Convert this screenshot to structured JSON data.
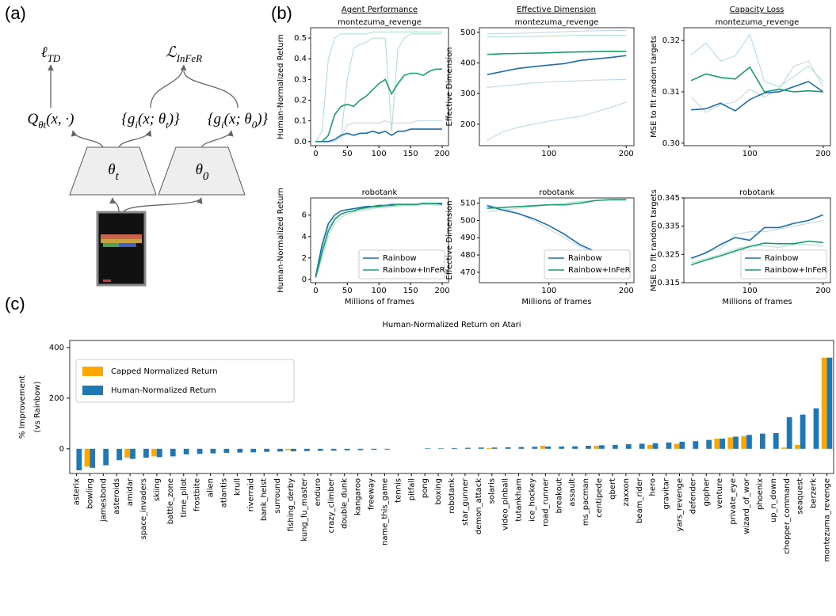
{
  "panel_labels": [
    "(a)",
    "(b)",
    "(c)"
  ],
  "diagram": {
    "loss_td": [
      {
        "text": "ℓ",
        "sub": false
      },
      {
        "text": "TD",
        "sub": true
      }
    ],
    "loss_infer": [
      {
        "text": "ℒ",
        "sub": false
      },
      {
        "text": "InFeR",
        "sub": true
      }
    ],
    "q": [
      {
        "text": "Q",
        "sub": false
      },
      {
        "text": "θt",
        "sub": true
      },
      {
        "text": "(x, ·)",
        "sub": false
      }
    ],
    "g_t": [
      {
        "text": "{g",
        "sub": false
      },
      {
        "text": "i",
        "sub": true
      },
      {
        "text": "(x; θ",
        "sub": false
      },
      {
        "text": "t",
        "sub": true
      },
      {
        "text": ")}",
        "sub": false
      }
    ],
    "g_0": [
      {
        "text": "{g",
        "sub": false
      },
      {
        "text": "i",
        "sub": true
      },
      {
        "text": "(x; θ",
        "sub": false
      },
      {
        "text": "0",
        "sub": true
      },
      {
        "text": ")}",
        "sub": false
      }
    ],
    "theta_t": [
      {
        "text": "θ",
        "sub": false
      },
      {
        "text": "t",
        "sub": true
      }
    ],
    "theta_0": [
      {
        "text": "θ",
        "sub": false
      },
      {
        "text": "0",
        "sub": true
      }
    ]
  },
  "column_titles": [
    "Agent Performance",
    "Effective Dimension",
    "Capacity Loss"
  ],
  "chart_data": [
    {
      "type": "line",
      "title": "montezuma_revenge",
      "ylabel": "Human-Normalized Return",
      "x": [
        0,
        10,
        20,
        30,
        40,
        50,
        60,
        70,
        80,
        90,
        100,
        110,
        120,
        130,
        140,
        150,
        160,
        170,
        180,
        190,
        200
      ],
      "xlim": [
        -8,
        210
      ],
      "xticks": [
        0,
        50,
        100,
        150,
        200
      ],
      "ylim": [
        -0.02,
        0.55
      ],
      "yticks": [
        {
          "value": 0,
          "label": "0.0"
        },
        0.1,
        0.2,
        0.3,
        0.4,
        0.5
      ],
      "series": [
        {
          "color": "#a8e0c8",
          "values": [
            0,
            0.05,
            0.4,
            0.5,
            0.52,
            0.52,
            0.52,
            0.52,
            0.52,
            0.53,
            0.53,
            0.53,
            0.53,
            0.53,
            0.53,
            0.53,
            0.53,
            0.53,
            0.53,
            0.53,
            0.53
          ]
        },
        {
          "color": "#a8e0c8",
          "values": [
            0,
            0,
            0,
            0,
            0.02,
            0.3,
            0.45,
            0.47,
            0.48,
            0.5,
            0.5,
            0.5,
            0.05,
            0.45,
            0.5,
            0.52,
            0.52,
            0.52,
            0.52,
            0.52,
            0.52
          ]
        },
        {
          "color": "#b9d4ea",
          "values": [
            0,
            0,
            0,
            0,
            0.02,
            0.08,
            0.09,
            0.09,
            0.09,
            0.09,
            0.09,
            0.1,
            0.09,
            0.09,
            0.09,
            0.09,
            0.1,
            0.1,
            0.1,
            0.1,
            0.1
          ]
        },
        {
          "name": "Rainbow",
          "color": "#1a6db0",
          "values": [
            0,
            0,
            0,
            0.01,
            0.03,
            0.04,
            0.03,
            0.04,
            0.04,
            0.05,
            0.04,
            0.05,
            0.03,
            0.05,
            0.05,
            0.06,
            0.06,
            0.06,
            0.06,
            0.06,
            0.06
          ]
        },
        {
          "name": "Rainbow+InFeR",
          "color": "#17a06a",
          "values": [
            0,
            0,
            0.03,
            0.13,
            0.17,
            0.18,
            0.17,
            0.2,
            0.22,
            0.25,
            0.28,
            0.3,
            0.23,
            0.28,
            0.32,
            0.33,
            0.33,
            0.32,
            0.34,
            0.35,
            0.35
          ]
        }
      ]
    },
    {
      "type": "line",
      "title": "montezuma_revenge",
      "ylabel": "Effective Dimension",
      "x": [
        20,
        40,
        60,
        80,
        100,
        120,
        140,
        160,
        180,
        200
      ],
      "xlim": [
        10,
        210
      ],
      "xticks": [
        100,
        200
      ],
      "ylim": [
        130,
        515
      ],
      "yticks": [
        200,
        300,
        400,
        500
      ],
      "series": [
        {
          "color": "#b9d4ea",
          "values": [
            148,
            175,
            190,
            200,
            210,
            218,
            225,
            240,
            255,
            272
          ]
        },
        {
          "color": "#b9d4ea",
          "values": [
            320,
            325,
            330,
            335,
            338,
            340,
            342,
            344,
            345,
            346
          ]
        },
        {
          "color": "#a8e0c8",
          "values": [
            485,
            485,
            486,
            487,
            488,
            489,
            490,
            490,
            490,
            490
          ]
        },
        {
          "color": "#b9d4ea",
          "values": [
            495,
            496,
            497,
            498,
            500,
            502,
            504,
            505,
            506,
            506
          ]
        },
        {
          "name": "Rainbow",
          "color": "#1a6db0",
          "values": [
            362,
            372,
            382,
            388,
            393,
            398,
            408,
            413,
            418,
            424
          ]
        },
        {
          "name": "Rainbow+InFeR",
          "color": "#17a06a",
          "values": [
            428,
            430,
            431,
            432,
            433,
            435,
            436,
            437,
            438,
            438
          ]
        }
      ]
    },
    {
      "type": "line",
      "title": "montezuma_revenge",
      "ylabel": "MSE to fit random targets",
      "x": [
        20,
        40,
        60,
        80,
        100,
        120,
        140,
        160,
        180,
        200
      ],
      "xlim": [
        10,
        210
      ],
      "xticks": [
        100,
        200
      ],
      "ylim": [
        0.2995,
        0.3225
      ],
      "yticks": [
        {
          "value": 0.3,
          "label": "0.30"
        },
        0.31,
        0.32
      ],
      "series": [
        {
          "color": "#a8e0c8",
          "values": [
            0.3172,
            0.3195,
            0.316,
            0.317,
            0.3212,
            0.312,
            0.311,
            0.313,
            0.315,
            0.312
          ]
        },
        {
          "color": "#b9d4ea",
          "values": [
            0.309,
            0.306,
            0.3075,
            0.308,
            0.3105,
            0.309,
            0.3105,
            0.315,
            0.316,
            0.311
          ]
        },
        {
          "name": "Rainbow",
          "color": "#1a6db0",
          "values": [
            0.3065,
            0.3067,
            0.3078,
            0.3063,
            0.3085,
            0.3098,
            0.31,
            0.311,
            0.312,
            0.31
          ]
        },
        {
          "name": "Rainbow+InFeR",
          "color": "#17a06a",
          "values": [
            0.3122,
            0.3135,
            0.3128,
            0.3125,
            0.3148,
            0.31,
            0.3105,
            0.31,
            0.3102,
            0.31
          ]
        }
      ]
    },
    {
      "type": "line",
      "title": "robotank",
      "ylabel": "Human-Normalized Return",
      "xlabel": "Millions of frames",
      "x": [
        0,
        10,
        20,
        30,
        40,
        50,
        60,
        70,
        80,
        90,
        100,
        110,
        120,
        130,
        140,
        150,
        160,
        170,
        180,
        190,
        200
      ],
      "xlim": [
        -8,
        210
      ],
      "xticks": [
        0,
        50,
        100,
        150,
        200
      ],
      "ylim": [
        -0.3,
        7.6
      ],
      "yticks": [
        0,
        2,
        4,
        6
      ],
      "legend": "lower right",
      "series": [
        {
          "color": "#b9d4ea",
          "values": [
            0.2,
            2.8,
            4.8,
            5.7,
            6.1,
            6.3,
            6.4,
            6.5,
            6.6,
            6.7,
            6.7,
            6.8,
            6.8,
            6.9,
            6.9,
            6.9,
            7.0,
            7.0,
            7.0,
            6.9,
            7.0
          ]
        },
        {
          "color": "#a8e0c8",
          "values": [
            0.1,
            2.0,
            4.0,
            5.2,
            5.8,
            6.1,
            6.3,
            6.4,
            6.5,
            6.6,
            6.7,
            6.7,
            6.8,
            6.8,
            6.9,
            6.9,
            6.9,
            7.0,
            7.0,
            7.0,
            6.9
          ]
        },
        {
          "name": "Rainbow",
          "color": "#1a6db0",
          "values": [
            0.3,
            3.2,
            5.2,
            6.0,
            6.4,
            6.5,
            6.6,
            6.7,
            6.8,
            6.8,
            6.9,
            6.9,
            7.0,
            7.0,
            7.0,
            7.0,
            7.0,
            7.1,
            7.1,
            7.1,
            7.1
          ]
        },
        {
          "name": "Rainbow+InFeR",
          "color": "#17a06a",
          "values": [
            0.2,
            2.5,
            4.5,
            5.6,
            6.1,
            6.3,
            6.4,
            6.6,
            6.7,
            6.8,
            6.8,
            6.9,
            6.9,
            7.0,
            7.0,
            7.0,
            7.0,
            7.1,
            7.1,
            7.1,
            7.0
          ]
        }
      ]
    },
    {
      "type": "line",
      "title": "robotank",
      "ylabel": "Effective Dimension",
      "xlabel": "Millions of frames",
      "x": [
        20,
        40,
        60,
        80,
        100,
        120,
        140,
        160,
        180,
        200
      ],
      "xlim": [
        10,
        210
      ],
      "xticks": [
        100,
        200
      ],
      "ylim": [
        464,
        513
      ],
      "yticks": [
        470,
        480,
        490,
        500,
        510
      ],
      "legend": "lower right",
      "series": [
        {
          "color": "#b9d4ea",
          "values": [
            509,
            507,
            504,
            500,
            495,
            490,
            485,
            481,
            476,
            474
          ]
        },
        {
          "color": "#a8e0c8",
          "values": [
            505,
            506,
            507,
            508,
            509,
            510,
            511,
            511.5,
            512,
            512
          ]
        },
        {
          "name": "Rainbow",
          "color": "#1a6db0",
          "values": [
            508.5,
            506,
            504,
            501,
            497,
            492,
            486,
            482,
            477,
            471
          ]
        },
        {
          "name": "Rainbow+InFeR",
          "color": "#17a06a",
          "values": [
            507,
            507.5,
            508,
            508.5,
            509,
            509,
            510,
            511.5,
            512,
            512
          ]
        }
      ]
    },
    {
      "type": "line",
      "title": "robotank",
      "ylabel": "MSE to fit random targets",
      "xlabel": "Millions of frames",
      "x": [
        20,
        40,
        60,
        80,
        100,
        120,
        140,
        160,
        180,
        200
      ],
      "xlim": [
        10,
        210
      ],
      "xticks": [
        100,
        200
      ],
      "ylim": [
        0.315,
        0.345
      ],
      "yticks": [
        0.315,
        0.325,
        0.335,
        0.345
      ],
      "legend": "lower right",
      "series": [
        {
          "color": "#b9d4ea",
          "values": [
            0.323,
            0.326,
            0.327,
            0.332,
            0.333,
            0.333,
            0.334,
            0.335,
            0.336,
            0.337
          ]
        },
        {
          "color": "#a8e0c8",
          "values": [
            0.322,
            0.3235,
            0.325,
            0.327,
            0.328,
            0.328,
            0.3275,
            0.3285,
            0.3285,
            0.328
          ]
        },
        {
          "name": "Rainbow",
          "color": "#1a6db0",
          "values": [
            0.3237,
            0.3255,
            0.3285,
            0.331,
            0.33,
            0.3345,
            0.3345,
            0.336,
            0.337,
            0.339
          ]
        },
        {
          "name": "Rainbow+InFeR",
          "color": "#17a06a",
          "values": [
            0.3213,
            0.323,
            0.3245,
            0.3262,
            0.3278,
            0.329,
            0.3288,
            0.3288,
            0.3297,
            0.3292
          ]
        }
      ]
    },
    {
      "type": "bar",
      "title": "Human-Normalized Return on Atari",
      "ylabel": [
        "% Improvement",
        "(vs Rainbow)"
      ],
      "legend": "upper left",
      "ylim": [
        -97.5,
        428
      ],
      "yticks": [
        0,
        200,
        400
      ],
      "categories": [
        "asterix",
        "bowling",
        "jamesbond",
        "asteroids",
        "amidar",
        "space_invaders",
        "skiing",
        "battle_zone",
        "time_pilot",
        "frostbite",
        "alien",
        "atlantis",
        "krull",
        "riverraid",
        "bank_heist",
        "surround",
        "fishing_derby",
        "kung_fu_master",
        "enduro",
        "crazy_climber",
        "double_dunk",
        "kangaroo",
        "freeway",
        "name_this_game",
        "tennis",
        "pitfall",
        "pong",
        "boxing",
        "robotank",
        "star_gunner",
        "demon_attack",
        "solaris",
        "video_pinball",
        "tutankham",
        "ice_hockey",
        "road_runner",
        "breakout",
        "assault",
        "ms_pacman",
        "centipede",
        "qbert",
        "zaxxon",
        "beam_rider",
        "hero",
        "gravitar",
        "yars_revenge",
        "defender",
        "gopher",
        "venture",
        "private_eye",
        "wizard_of_wor",
        "phoenix",
        "up_n_down",
        "chopper_command",
        "seaquest",
        "berzerk",
        "montezuma_revenge"
      ],
      "series": [
        {
          "name": "Capped Normalized Return",
          "color": "#ffa600",
          "values": [
            0,
            -70,
            0,
            0,
            -35,
            0,
            -30,
            0,
            0,
            0,
            0,
            0,
            0,
            0,
            0,
            0,
            -5,
            0,
            0,
            0,
            0,
            0,
            0,
            0,
            0,
            0,
            0,
            0,
            0,
            0,
            0,
            3,
            0,
            0,
            0,
            12,
            0,
            0,
            0,
            12,
            0,
            0,
            0,
            15,
            0,
            20,
            0,
            0,
            40,
            45,
            50,
            0,
            0,
            5,
            15,
            0,
            360
          ]
        },
        {
          "name": "Human-Normalized Return",
          "color": "#1f77b4",
          "values": [
            -85,
            -75,
            -65,
            -45,
            -40,
            -35,
            -33,
            -30,
            -22,
            -20,
            -18,
            -16,
            -15,
            -14,
            -12,
            -11,
            -10,
            -9,
            -8,
            -7,
            -6,
            -5,
            -4,
            -3,
            0,
            0,
            2,
            2,
            3,
            4,
            5,
            5,
            6,
            7,
            8,
            9,
            9,
            10,
            12,
            14,
            15,
            18,
            20,
            22,
            25,
            28,
            30,
            35,
            40,
            48,
            55,
            60,
            62,
            125,
            135,
            160,
            360
          ]
        }
      ]
    }
  ]
}
